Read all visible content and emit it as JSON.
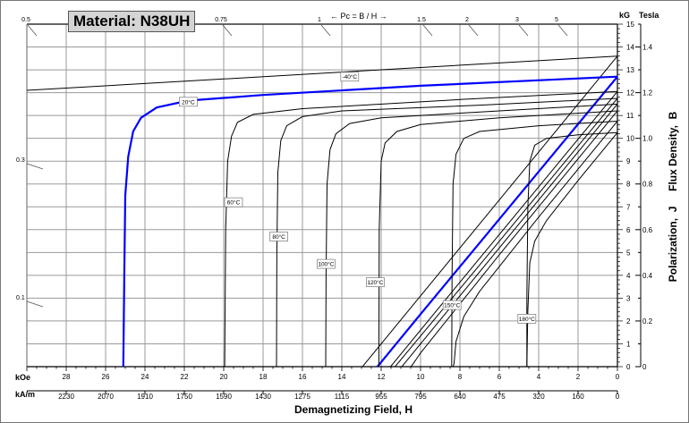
{
  "chart_data": {
    "type": "line",
    "title": "Material: N38UH",
    "xlabel": "Demagnetizing Field, H",
    "ylabel": "Polarization,  J     Flux Density,  B",
    "x_units_primary": "kOe",
    "x_units_secondary": "kA/m",
    "y_units_primary": "kG",
    "y_units_secondary": "Tesla",
    "xlim": [
      30,
      0
    ],
    "ylim": [
      0,
      15
    ],
    "grid": true,
    "x_ticks_kOe": [
      "28",
      "26",
      "24",
      "22",
      "20",
      "18",
      "16",
      "14",
      "12",
      "10",
      "8",
      "6",
      "4",
      "2",
      "0"
    ],
    "x_ticks_kAm": [
      "2230",
      "2070",
      "1910",
      "1750",
      "1590",
      "1430",
      "1275",
      "1115",
      "955",
      "795",
      "640",
      "475",
      "320",
      "160",
      "0"
    ],
    "y_ticks_kG": [
      "0",
      "1",
      "2",
      "3",
      "4",
      "5",
      "6",
      "7",
      "8",
      "9",
      "10",
      "11",
      "12",
      "13",
      "14",
      "15"
    ],
    "y_ticks_tesla": [
      "0",
      "0.2",
      "0.4",
      "0.6",
      "0.8",
      "1.0",
      "1.2",
      "1.4"
    ],
    "permeance_label": "Pc = B / H",
    "permeance_coefficients": [
      "0.5",
      "0.75",
      "1",
      "1.5",
      "2",
      "3",
      "5",
      "0.3",
      "0.1"
    ],
    "highlight_color": "#0000ff",
    "curve_color": "#000000",
    "series": [
      {
        "name": "-40°C",
        "highlight": false,
        "J": [
          [
            0,
            13.6
          ],
          [
            10,
            13.1
          ],
          [
            20,
            12.6
          ],
          [
            30,
            12.1
          ]
        ]
      },
      {
        "name": "20°C",
        "highlight": true,
        "J": [
          [
            0,
            12.7
          ],
          [
            10,
            12.3
          ],
          [
            18,
            11.9
          ],
          [
            21.8,
            11.65
          ],
          [
            23.4,
            11.35
          ],
          [
            24.2,
            10.9
          ],
          [
            24.6,
            10.3
          ],
          [
            24.85,
            9.2
          ],
          [
            25,
            7.5
          ],
          [
            25.05,
            4
          ],
          [
            25.1,
            0
          ]
        ]
      },
      {
        "name": "60°C",
        "highlight": false,
        "J": [
          [
            0,
            12.05
          ],
          [
            8,
            11.7
          ],
          [
            16,
            11.3
          ],
          [
            18.5,
            11.05
          ],
          [
            19.3,
            10.7
          ],
          [
            19.6,
            10.1
          ],
          [
            19.8,
            9
          ],
          [
            19.9,
            6
          ],
          [
            19.95,
            0
          ]
        ]
      },
      {
        "name": "80°C",
        "highlight": false,
        "J": [
          [
            0,
            11.75
          ],
          [
            7,
            11.45
          ],
          [
            14,
            11.2
          ],
          [
            16,
            10.95
          ],
          [
            16.8,
            10.55
          ],
          [
            17.1,
            9.9
          ],
          [
            17.25,
            8.5
          ],
          [
            17.3,
            5
          ],
          [
            17.32,
            0
          ]
        ]
      },
      {
        "name": "100°C",
        "highlight": false,
        "J": [
          [
            0,
            11.5
          ],
          [
            6,
            11.2
          ],
          [
            12,
            10.9
          ],
          [
            13.6,
            10.65
          ],
          [
            14.3,
            10.2
          ],
          [
            14.6,
            9.5
          ],
          [
            14.75,
            8
          ],
          [
            14.8,
            4
          ],
          [
            14.82,
            0
          ]
        ]
      },
      {
        "name": "120°C",
        "highlight": false,
        "J": [
          [
            0,
            11.2
          ],
          [
            6,
            10.9
          ],
          [
            10,
            10.6
          ],
          [
            11.2,
            10.3
          ],
          [
            11.8,
            9.8
          ],
          [
            12.0,
            9
          ],
          [
            12.1,
            6
          ],
          [
            12.12,
            0
          ]
        ]
      },
      {
        "name": "150°C",
        "highlight": false,
        "J": [
          [
            0,
            10.75
          ],
          [
            4,
            10.55
          ],
          [
            7,
            10.3
          ],
          [
            7.8,
            10.0
          ],
          [
            8.2,
            9.3
          ],
          [
            8.35,
            8
          ],
          [
            8.4,
            4
          ],
          [
            8.42,
            0
          ]
        ]
      },
      {
        "name": "180°C",
        "highlight": false,
        "J": [
          [
            0,
            10.25
          ],
          [
            2,
            10.15
          ],
          [
            3.6,
            10.0
          ],
          [
            4.2,
            9.7
          ],
          [
            4.45,
            9.0
          ],
          [
            4.55,
            7
          ],
          [
            4.6,
            3
          ],
          [
            4.6,
            0
          ]
        ]
      }
    ],
    "normal_curve_relation": "B = J - H"
  }
}
